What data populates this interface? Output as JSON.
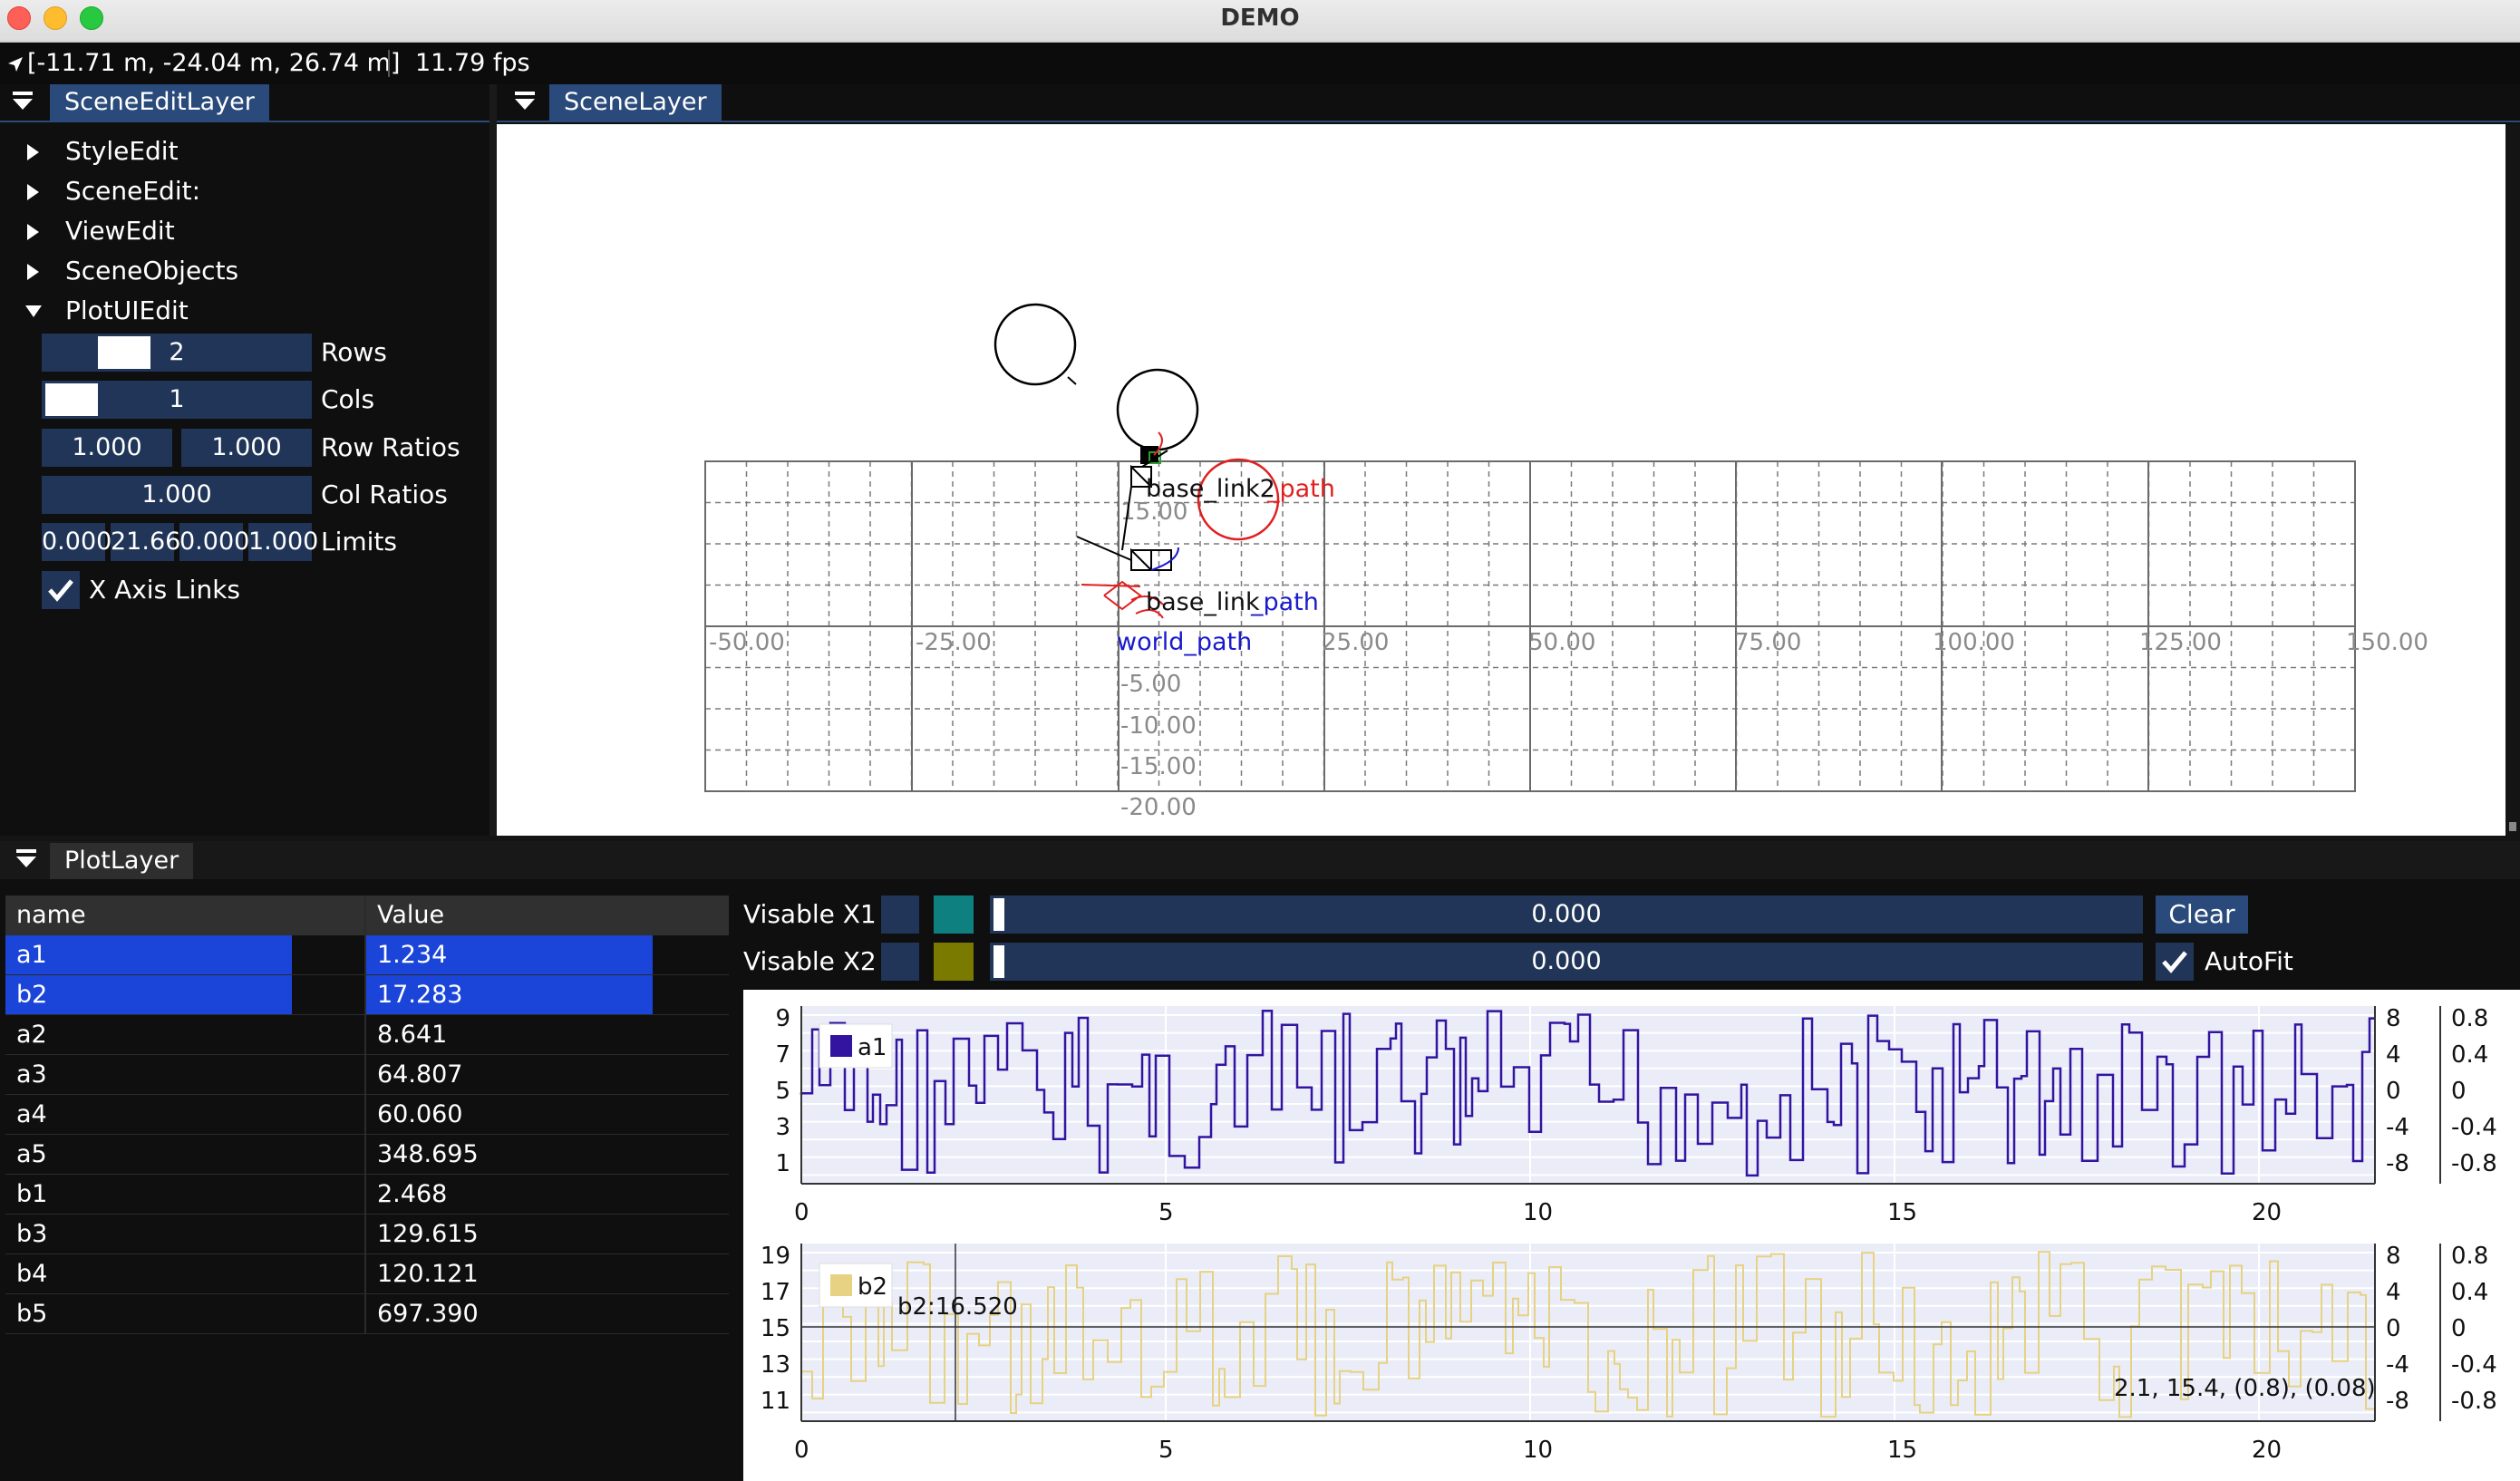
{
  "window": {
    "title": "DEMO"
  },
  "status": {
    "coords": "[-11.71 m, -24.04 m, 26.74 m]",
    "fps": "11.79 fps"
  },
  "scene_edit_layer": {
    "tab_label": "SceneEditLayer",
    "tree": [
      {
        "label": "StyleEdit",
        "expanded": false
      },
      {
        "label": "SceneEdit:",
        "expanded": false
      },
      {
        "label": "ViewEdit",
        "expanded": false
      },
      {
        "label": "SceneObjects",
        "expanded": false
      },
      {
        "label": "PlotUIEdit",
        "expanded": true
      }
    ],
    "plot_ui": {
      "rows_value": "2",
      "rows_label": "Rows",
      "cols_value": "1",
      "cols_label": "Cols",
      "row_ratio_1": "1.000",
      "row_ratio_2": "1.000",
      "row_ratios_label": "Row Ratios",
      "col_ratio": "1.000",
      "col_ratios_label": "Col Ratios",
      "limit_1": "0.000",
      "limit_2": "21.66",
      "limit_3": "0.000",
      "limit_4": "1.000",
      "limits_label": "Limits",
      "x_axis_links_label": "X Axis Links",
      "x_axis_links_checked": true
    }
  },
  "scene_layer": {
    "tab_label": "SceneLayer",
    "x_ticks": [
      "-50.00",
      "-25.00",
      "25.00",
      "50.00",
      "75.00",
      "100.00",
      "125.00",
      "150.00"
    ],
    "y_ticks": [
      "15.00",
      "-5.00",
      "-10.00",
      "-15.00",
      "-20.00"
    ],
    "labels": {
      "top_black": "base_link2",
      "top_red": "_path",
      "mid_black": "base_link",
      "mid_blue": "_path",
      "low_blue": "world_path"
    }
  },
  "plot_layer": {
    "tab_label": "PlotLayer",
    "table": {
      "headers": {
        "name": "name",
        "value": "Value"
      },
      "rows": [
        {
          "name": "a1",
          "value": "1.234",
          "selected": true
        },
        {
          "name": "b2",
          "value": "17.283",
          "selected": true
        },
        {
          "name": "a2",
          "value": "8.641",
          "selected": false
        },
        {
          "name": "a3",
          "value": "64.807",
          "selected": false
        },
        {
          "name": "a4",
          "value": "60.060",
          "selected": false
        },
        {
          "name": "a5",
          "value": "348.695",
          "selected": false
        },
        {
          "name": "b1",
          "value": "2.468",
          "selected": false
        },
        {
          "name": "b3",
          "value": "129.615",
          "selected": false
        },
        {
          "name": "b4",
          "value": "120.121",
          "selected": false
        },
        {
          "name": "b5",
          "value": "697.390",
          "selected": false
        }
      ]
    },
    "controls": {
      "visable_x1_label": "Visable X1",
      "visable_x1_value": "0.000",
      "visable_x1_color": "#0f8080",
      "visable_x2_label": "Visable X2",
      "visable_x2_value": "0.000",
      "visable_x2_color": "#7a7a00",
      "clear_label": "Clear",
      "autofit_label": "AutoFit",
      "autofit_checked": true
    },
    "plot1": {
      "legend": "a1",
      "color": "#3214a0",
      "y_ticks_left": [
        "9",
        "7",
        "5",
        "3",
        "1"
      ],
      "y_ticks_right1": [
        "8",
        "4",
        "0",
        "-4",
        "-8"
      ],
      "y_ticks_right2": [
        "0.8",
        "0.4",
        "0",
        "-0.4",
        "-0.8"
      ],
      "x_ticks": [
        "0",
        "5",
        "10",
        "15",
        "20"
      ]
    },
    "plot2": {
      "legend": "b2",
      "color": "#e6d282",
      "y_ticks_left": [
        "19",
        "17",
        "15",
        "13",
        "11"
      ],
      "y_ticks_right1": [
        "8",
        "4",
        "0",
        "-4",
        "-8"
      ],
      "y_ticks_right2": [
        "0.8",
        "0.4",
        "0",
        "-0.4",
        "-0.8"
      ],
      "x_ticks": [
        "0",
        "5",
        "10",
        "15",
        "20"
      ],
      "cursor_label": "b2:16.520",
      "readout": "2.1, 15.4, (0.8), (0.08)"
    }
  }
}
